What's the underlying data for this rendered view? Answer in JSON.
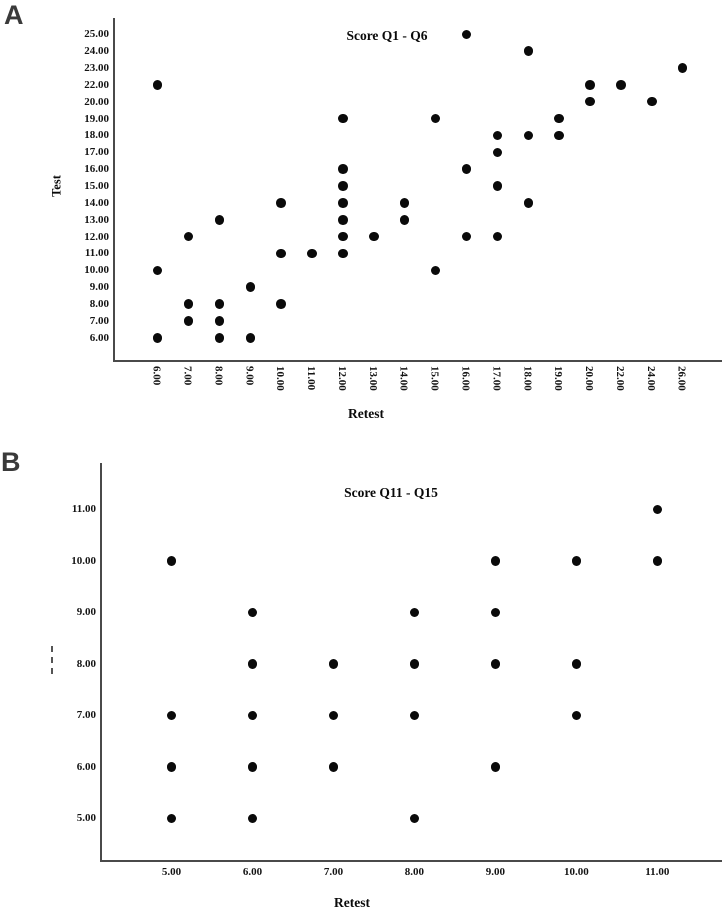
{
  "figure": {
    "panel_a_letter": "A",
    "panel_b_letter": "B"
  },
  "chart_data": [
    {
      "id": "A",
      "type": "scatter",
      "title": "Score Q1 - Q6",
      "xlabel": "Retest",
      "ylabel": "Test",
      "grid": false,
      "legend": "none",
      "x_tick_labels": [
        "6.00",
        "7.00",
        "8.00",
        "9.00",
        "10.00",
        "11.00",
        "12.00",
        "13.00",
        "14.00",
        "15.00",
        "16.00",
        "17.00",
        "18.00",
        "19.00",
        "20.00",
        "22.00",
        "24.00",
        "26.00"
      ],
      "y_tick_labels": [
        "25.00",
        "24.00",
        "23.00",
        "22.00",
        "20.00",
        "19.00",
        "18.00",
        "17.00",
        "16.00",
        "15.00",
        "14.00",
        "13.00",
        "12.00",
        "11.00",
        "10.00",
        "9.00",
        "8.00",
        "7.00",
        "6.00"
      ],
      "points": [
        [
          6,
          22
        ],
        [
          6,
          10
        ],
        [
          6,
          6
        ],
        [
          7,
          12
        ],
        [
          7,
          8
        ],
        [
          7,
          7
        ],
        [
          8,
          13
        ],
        [
          8,
          8
        ],
        [
          8,
          7
        ],
        [
          8,
          6
        ],
        [
          9,
          9
        ],
        [
          9,
          6
        ],
        [
          10,
          14
        ],
        [
          10,
          11
        ],
        [
          10,
          8
        ],
        [
          11,
          11
        ],
        [
          12,
          19
        ],
        [
          12,
          16
        ],
        [
          12,
          15
        ],
        [
          12,
          14
        ],
        [
          12,
          13
        ],
        [
          12,
          12
        ],
        [
          12,
          11
        ],
        [
          13,
          12
        ],
        [
          14,
          14
        ],
        [
          14,
          13
        ],
        [
          15,
          19
        ],
        [
          15,
          10
        ],
        [
          16,
          25
        ],
        [
          16,
          16
        ],
        [
          16,
          12
        ],
        [
          17,
          18
        ],
        [
          17,
          17
        ],
        [
          17,
          15
        ],
        [
          17,
          12
        ],
        [
          18,
          24
        ],
        [
          18,
          18
        ],
        [
          18,
          14
        ],
        [
          19,
          19
        ],
        [
          19,
          18
        ],
        [
          20,
          22
        ],
        [
          20,
          20
        ],
        [
          22,
          22
        ],
        [
          24,
          20
        ],
        [
          26,
          23
        ]
      ]
    },
    {
      "id": "B",
      "type": "scatter",
      "title": "Score Q11 - Q15",
      "xlabel": "Retest",
      "ylabel": "",
      "grid": false,
      "legend": "none",
      "x_tick_labels": [
        "5.00",
        "6.00",
        "7.00",
        "8.00",
        "9.00",
        "10.00",
        "11.00"
      ],
      "y_tick_labels": [
        "11.00",
        "10.00",
        "9.00",
        "8.00",
        "7.00",
        "6.00",
        "5.00"
      ],
      "points": [
        [
          5,
          10
        ],
        [
          5,
          7
        ],
        [
          5,
          6
        ],
        [
          5,
          5
        ],
        [
          6,
          9
        ],
        [
          6,
          8
        ],
        [
          6,
          7
        ],
        [
          6,
          6
        ],
        [
          6,
          5
        ],
        [
          7,
          8
        ],
        [
          7,
          7
        ],
        [
          7,
          6
        ],
        [
          8,
          9
        ],
        [
          8,
          8
        ],
        [
          8,
          7
        ],
        [
          8,
          5
        ],
        [
          9,
          10
        ],
        [
          9,
          9
        ],
        [
          9,
          8
        ],
        [
          9,
          6
        ],
        [
          10,
          10
        ],
        [
          10,
          8
        ],
        [
          10,
          7
        ],
        [
          11,
          11
        ],
        [
          11,
          10
        ]
      ]
    }
  ]
}
